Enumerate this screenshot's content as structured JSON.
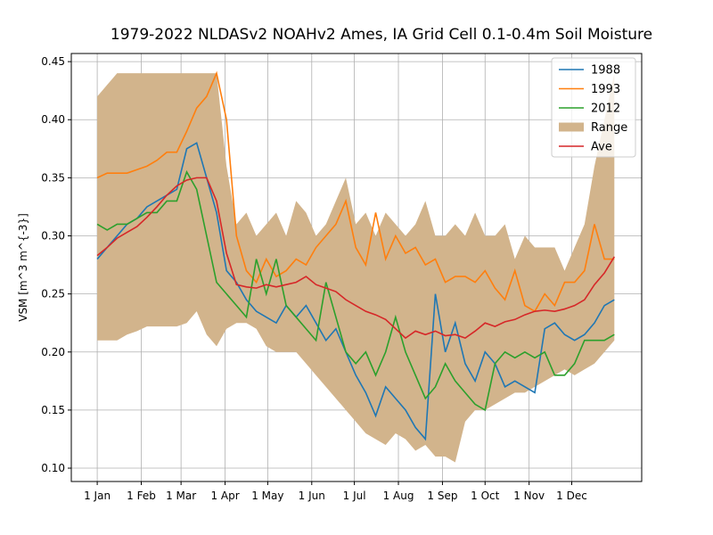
{
  "chart_data": {
    "type": "line",
    "title": "1979-2022 NLDASv2 NOAHv2 Ames, IA Grid Cell 0.1-0.4m Soil Moisture",
    "y_label": "VSM [m^3 m^{-3}]",
    "x": [
      1,
      8,
      15,
      22,
      29,
      36,
      43,
      50,
      57,
      64,
      71,
      78,
      85,
      92,
      99,
      106,
      113,
      120,
      127,
      134,
      141,
      148,
      155,
      162,
      169,
      176,
      183,
      190,
      197,
      204,
      211,
      218,
      225,
      232,
      239,
      246,
      253,
      260,
      267,
      274,
      281,
      288,
      295,
      302,
      309,
      316,
      323,
      330,
      337,
      344,
      351,
      358,
      365
    ],
    "xlim": [
      -17.25,
      384.25
    ],
    "xticks": [
      {
        "value": 1,
        "label": "1 Jan"
      },
      {
        "value": 32,
        "label": "1 Feb"
      },
      {
        "value": 60,
        "label": "1 Mar"
      },
      {
        "value": 91,
        "label": "1 Apr"
      },
      {
        "value": 121,
        "label": "1 May"
      },
      {
        "value": 152,
        "label": "1 Jun"
      },
      {
        "value": 182,
        "label": "1 Jul"
      },
      {
        "value": 213,
        "label": "1 Aug"
      },
      {
        "value": 244,
        "label": "1 Sep"
      },
      {
        "value": 274,
        "label": "1 Oct"
      },
      {
        "value": 305,
        "label": "1 Nov"
      },
      {
        "value": 335,
        "label": "1 Dec"
      }
    ],
    "ylim": [
      0.0885,
      0.457
    ],
    "yticks": [
      {
        "value": 0.1,
        "label": "0.10"
      },
      0.15,
      {
        "value": 0.2,
        "label": "0.20"
      },
      0.25,
      {
        "value": 0.3,
        "label": "0.30"
      },
      0.35,
      {
        "value": 0.4,
        "label": "0.40"
      },
      0.45
    ],
    "grid": true,
    "legend": "upper right",
    "series": [
      {
        "name": "1988",
        "color": "#1f77b4",
        "values": [
          0.28,
          0.29,
          0.3,
          0.31,
          0.315,
          0.325,
          0.33,
          0.335,
          0.34,
          0.375,
          0.38,
          0.35,
          0.32,
          0.27,
          0.26,
          0.245,
          0.235,
          0.23,
          0.225,
          0.24,
          0.23,
          0.24,
          0.225,
          0.21,
          0.22,
          0.2,
          0.18,
          0.165,
          0.145,
          0.17,
          0.16,
          0.15,
          0.135,
          0.125,
          0.25,
          0.2,
          0.225,
          0.19,
          0.175,
          0.2,
          0.19,
          0.17,
          0.175,
          0.17,
          0.165,
          0.22,
          0.225,
          0.215,
          0.21,
          0.215,
          0.225,
          0.24,
          0.245
        ]
      },
      {
        "name": "1993",
        "color": "#ff7f0e",
        "values": [
          0.35,
          0.354,
          0.354,
          0.354,
          0.357,
          0.36,
          0.365,
          0.372,
          0.372,
          0.39,
          0.41,
          0.42,
          0.44,
          0.4,
          0.3,
          0.27,
          0.26,
          0.28,
          0.265,
          0.27,
          0.28,
          0.275,
          0.29,
          0.3,
          0.31,
          0.33,
          0.29,
          0.275,
          0.32,
          0.28,
          0.3,
          0.285,
          0.29,
          0.275,
          0.28,
          0.26,
          0.265,
          0.265,
          0.26,
          0.27,
          0.255,
          0.245,
          0.27,
          0.24,
          0.235,
          0.25,
          0.24,
          0.26,
          0.26,
          0.27,
          0.31,
          0.28,
          0.28
        ]
      },
      {
        "name": "2012",
        "color": "#2ca02c",
        "values": [
          0.31,
          0.305,
          0.31,
          0.31,
          0.315,
          0.32,
          0.32,
          0.33,
          0.33,
          0.355,
          0.34,
          0.3,
          0.26,
          0.25,
          0.24,
          0.23,
          0.28,
          0.25,
          0.28,
          0.24,
          0.23,
          0.22,
          0.21,
          0.26,
          0.23,
          0.2,
          0.19,
          0.2,
          0.18,
          0.2,
          0.23,
          0.2,
          0.18,
          0.16,
          0.17,
          0.19,
          0.175,
          0.165,
          0.155,
          0.15,
          0.19,
          0.2,
          0.195,
          0.2,
          0.195,
          0.2,
          0.18,
          0.18,
          0.19,
          0.21,
          0.21,
          0.21,
          0.215
        ]
      },
      {
        "name": "Range",
        "type": "band",
        "color": "#d2b48c",
        "values": [
          0.42,
          0.43,
          0.44,
          0.44,
          0.44,
          0.44,
          0.44,
          0.44,
          0.44,
          0.44,
          0.44,
          0.44,
          0.44,
          0.36,
          0.31,
          0.32,
          0.3,
          0.31,
          0.32,
          0.3,
          0.33,
          0.32,
          0.3,
          0.31,
          0.33,
          0.35,
          0.31,
          0.32,
          0.3,
          0.32,
          0.31,
          0.3,
          0.31,
          0.33,
          0.3,
          0.3,
          0.31,
          0.3,
          0.32,
          0.3,
          0.3,
          0.31,
          0.28,
          0.3,
          0.29,
          0.29,
          0.29,
          0.27,
          0.29,
          0.31,
          0.36,
          0.4,
          0.44
        ],
        "low": [
          0.21,
          0.21,
          0.21,
          0.215,
          0.218,
          0.222,
          0.222,
          0.222,
          0.222,
          0.225,
          0.235,
          0.215,
          0.205,
          0.22,
          0.225,
          0.225,
          0.22,
          0.205,
          0.2,
          0.2,
          0.2,
          0.19,
          0.18,
          0.17,
          0.16,
          0.15,
          0.14,
          0.13,
          0.125,
          0.12,
          0.13,
          0.125,
          0.115,
          0.12,
          0.11,
          0.11,
          0.105,
          0.14,
          0.15,
          0.15,
          0.155,
          0.16,
          0.165,
          0.165,
          0.17,
          0.175,
          0.18,
          0.185,
          0.18,
          0.185,
          0.19,
          0.2,
          0.21
        ]
      },
      {
        "name": "Ave",
        "color": "#d62728",
        "values": [
          0.283,
          0.29,
          0.298,
          0.303,
          0.308,
          0.316,
          0.325,
          0.335,
          0.343,
          0.348,
          0.35,
          0.35,
          0.33,
          0.285,
          0.258,
          0.256,
          0.255,
          0.258,
          0.256,
          0.258,
          0.26,
          0.265,
          0.258,
          0.255,
          0.252,
          0.245,
          0.24,
          0.235,
          0.232,
          0.228,
          0.22,
          0.212,
          0.218,
          0.215,
          0.218,
          0.214,
          0.215,
          0.212,
          0.218,
          0.225,
          0.222,
          0.226,
          0.228,
          0.232,
          0.235,
          0.236,
          0.235,
          0.237,
          0.24,
          0.245,
          0.258,
          0.268,
          0.282
        ]
      }
    ]
  }
}
